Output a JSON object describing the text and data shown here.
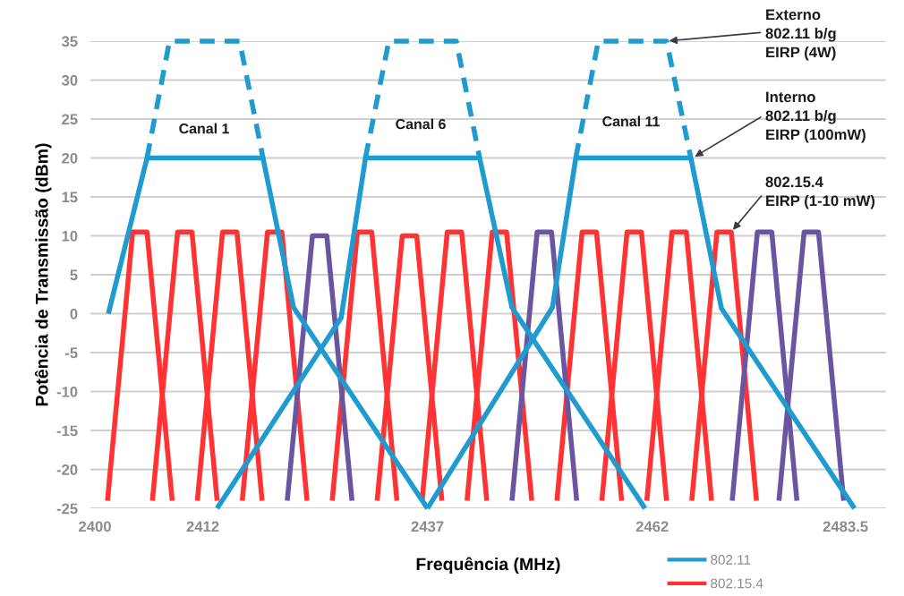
{
  "chart_data": {
    "type": "line",
    "xlabel": "Frequência (MHz)",
    "ylabel": "Potência de Transmissão (dBm)",
    "xlim": [
      2399.5,
      2488
    ],
    "xticks": [
      2400,
      2412,
      2437,
      2462,
      2483.5
    ],
    "ylim": [
      -25,
      35
    ],
    "yticks": [
      -25,
      -20,
      -15,
      -10,
      -5,
      0,
      5,
      10,
      15,
      20,
      25,
      30,
      35
    ],
    "grid": "y",
    "legend": "bottom right",
    "marker": "none",
    "line_style": "solid",
    "series": [
      {
        "name": "802.15.4",
        "color": "#ff3333",
        "x": [
          2401.4,
          2404.2,
          2405.8,
          2408.6
        ],
        "values": [
          -24,
          10.5,
          10.5,
          -24
        ]
      },
      {
        "color": "#ff3333",
        "x": [
          2406.4,
          2409.2,
          2410.8,
          2413.6
        ],
        "values": [
          -24,
          10.5,
          10.5,
          -24
        ]
      },
      {
        "color": "#ff3333",
        "x": [
          2411.4,
          2414.2,
          2415.8,
          2418.6
        ],
        "values": [
          -24,
          10.5,
          10.5,
          -24
        ]
      },
      {
        "color": "#ff3333",
        "x": [
          2416.4,
          2419.2,
          2420.8,
          2423.6
        ],
        "values": [
          -24,
          10.5,
          10.5,
          -24
        ]
      },
      {
        "color": "#ff3333",
        "x": [
          2426.4,
          2429.2,
          2430.8,
          2433.6
        ],
        "values": [
          -24,
          10.5,
          10.5,
          -24
        ]
      },
      {
        "color": "#ff3333",
        "x": [
          2431.4,
          2434.2,
          2435.8,
          2438.6
        ],
        "values": [
          -24,
          10,
          10,
          -24
        ]
      },
      {
        "color": "#ff3333",
        "x": [
          2436.4,
          2439.2,
          2440.8,
          2443.6
        ],
        "values": [
          -24,
          10.5,
          10.5,
          -24
        ]
      },
      {
        "color": "#ff3333",
        "x": [
          2441.4,
          2444.2,
          2445.8,
          2448.6
        ],
        "values": [
          -24,
          10.5,
          10.5,
          -24
        ]
      },
      {
        "color": "#ff3333",
        "x": [
          2451.4,
          2454.2,
          2455.8,
          2458.6
        ],
        "values": [
          -24,
          10.5,
          10.5,
          -24
        ]
      },
      {
        "color": "#ff3333",
        "x": [
          2456.4,
          2459.2,
          2460.8,
          2463.6
        ],
        "values": [
          -24,
          10.5,
          10.5,
          -24
        ]
      },
      {
        "color": "#ff3333",
        "x": [
          2461.4,
          2464.2,
          2465.8,
          2468.6
        ],
        "values": [
          -24,
          10.5,
          10.5,
          -24
        ]
      },
      {
        "color": "#ff3333",
        "x": [
          2466.4,
          2469.2,
          2470.8,
          2473.6
        ],
        "values": [
          -24,
          10.5,
          10.5,
          -24
        ]
      },
      {
        "color": "#6a55a0",
        "x": [
          2421.4,
          2424.2,
          2425.8,
          2428.6
        ],
        "values": [
          -24,
          10,
          10,
          -24
        ]
      },
      {
        "color": "#6a55a0",
        "x": [
          2446.4,
          2449.2,
          2450.8,
          2453.6
        ],
        "values": [
          -24,
          10.5,
          10.5,
          -24
        ]
      },
      {
        "color": "#6a55a0",
        "x": [
          2470.9,
          2473.7,
          2475.3,
          2478.1
        ],
        "values": [
          -24,
          10.5,
          10.5,
          -24
        ]
      },
      {
        "color": "#6a55a0",
        "x": [
          2476.1,
          2478.9,
          2480.5,
          2483.3
        ],
        "values": [
          -24,
          10.5,
          10.5,
          -24
        ]
      },
      {
        "name": "802.11",
        "color": "#1f9bcf",
        "x": [
          2401.5,
          2405.8,
          2418.7,
          2422.1,
          2437
        ],
        "values": [
          0,
          20,
          20,
          0.8,
          -25
        ]
      },
      {
        "color": "#1f9bcf",
        "x": [
          2413.6,
          2427.4,
          2430.1,
          2442.8,
          2446.4,
          2461.2
        ],
        "values": [
          -25,
          -0.5,
          20,
          20,
          0.8,
          -25
        ]
      },
      {
        "color": "#1f9bcf",
        "x": [
          2437,
          2450.9,
          2453.5,
          2466.3,
          2469.7,
          2484.5
        ],
        "values": [
          -25,
          0.8,
          20,
          20,
          0.7,
          -25
        ]
      },
      {
        "color": "#1f9bcf",
        "line_style": "dashed",
        "x": [
          2405.8,
          2408.3,
          2416.1,
          2418.7
        ],
        "values": [
          20,
          35,
          35,
          20
        ]
      },
      {
        "color": "#1f9bcf",
        "line_style": "dashed",
        "x": [
          2430.1,
          2432.7,
          2440.2,
          2442.8
        ],
        "values": [
          20,
          35,
          35,
          20
        ]
      },
      {
        "color": "#1f9bcf",
        "line_style": "dashed",
        "x": [
          2453.5,
          2456,
          2463.6,
          2466.3
        ],
        "values": [
          20,
          35,
          35,
          20
        ]
      }
    ],
    "annotations": [
      "Canal 1",
      "Canal 6",
      "Canal 11",
      {
        "text": "Externo\n802.11 b/g\nEIRP (4W)",
        "x": 2463.6,
        "y": 35
      },
      {
        "text": "Interno\n802.11 b/g\nEIRP (100mW)",
        "x": 2466.5,
        "y": 20
      },
      {
        "text": "802.15.4\nEIRP (1-10 mW)",
        "x": 2470.8,
        "y": 10.5
      }
    ]
  }
}
